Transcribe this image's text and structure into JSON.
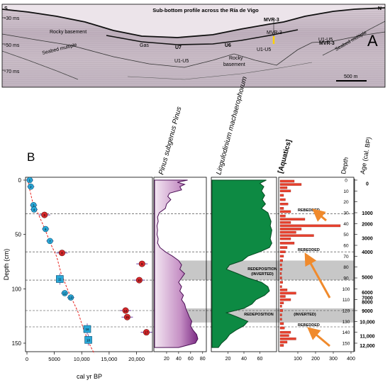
{
  "panel_a": {
    "letter": "A",
    "title": "Sub-bottom profile across the Ría de Vigo",
    "corner_left": "S",
    "corner_right": "N",
    "depth_ticks": [
      "-30 ms",
      "-50 ms",
      "-70 ms"
    ],
    "labels": {
      "rocky_basement_left": "Rocky basement",
      "seabed_multiple_left": "Seabed multiple",
      "gas": "Gas",
      "u7": "U7",
      "u1u5_a": "U1-U5",
      "u6": "U6",
      "rocky_basement_mid_1": "Rocky",
      "rocky_basement_mid_2": "basement",
      "mvr3_top": "MVR-3",
      "mvr3_mid": "MVR-3",
      "u1u5_b": "U1-U5",
      "u1u5_c": "U1-U5",
      "mvr3_right": "MVR-3",
      "seabed_multiple_right": "Seabed multiple"
    },
    "scale_bar": "500 m",
    "colors": {
      "core_marker": "#ffd200",
      "seafloor": "#000000"
    }
  },
  "panel_b": {
    "letter": "B",
    "colors": {
      "accent": "#e8231f",
      "pinus_fill": "#7b2a84",
      "pinus_light": "#e9cfe8",
      "lingulo_fill": "#0d8a43",
      "aquatics_bar": "#e8412e",
      "redeposition": "#bdbdbd",
      "arrow": "#f08a2c"
    },
    "age_depth": {
      "ylabel": "Depth (cm)",
      "xlabel": "cal yr BP",
      "xticks": [
        "0",
        "5000",
        "10,000",
        "15,000",
        "20,000"
      ],
      "yticks": [
        "0",
        "50",
        "100",
        "150"
      ],
      "points": [
        {
          "id": "1",
          "kind": "calibrated",
          "age": 500,
          "depth": 0
        },
        {
          "id": "2",
          "kind": "calibrated",
          "age": 700,
          "depth": 6
        },
        {
          "id": "3",
          "kind": "calibrated",
          "age": 1200,
          "depth": 23
        },
        {
          "id": "4",
          "kind": "calibrated",
          "age": 1300,
          "depth": 27
        },
        {
          "id": "5",
          "kind": "rejected",
          "age": 3200,
          "depth": 32
        },
        {
          "id": "6",
          "kind": "calibrated",
          "age": 3400,
          "depth": 45
        },
        {
          "id": "7",
          "kind": "calibrated",
          "age": 4200,
          "depth": 56
        },
        {
          "id": "8",
          "kind": "rejected",
          "age": 6400,
          "depth": 67
        },
        {
          "id": "9",
          "kind": "rejected",
          "age": 21000,
          "depth": 77
        },
        {
          "id": "10",
          "kind": "rejected",
          "age": 20500,
          "depth": 92
        },
        {
          "id": "11",
          "kind": "square",
          "age": 6000,
          "depth": 91
        },
        {
          "id": "12",
          "kind": "calibrated",
          "age": 6900,
          "depth": 104
        },
        {
          "id": "13",
          "kind": "calibrated",
          "age": 8000,
          "depth": 108
        },
        {
          "id": "14",
          "kind": "rejected",
          "age": 18000,
          "depth": 120
        },
        {
          "id": "15",
          "kind": "rejected",
          "age": 18300,
          "depth": 126
        },
        {
          "id": "16",
          "kind": "square",
          "age": 11000,
          "depth": 137
        },
        {
          "id": "17",
          "kind": "rejected",
          "age": 21800,
          "depth": 140
        },
        {
          "id": "18",
          "kind": "square",
          "age": 11200,
          "depth": 147
        }
      ]
    },
    "pinus": {
      "title": "Pinus subgenus Pinus",
      "xticks": [
        "20",
        "40",
        "60",
        "80"
      ],
      "values": [
        {
          "depth": 0,
          "value": 55
        },
        {
          "depth": 2,
          "value": 38
        },
        {
          "depth": 4,
          "value": 50
        },
        {
          "depth": 6,
          "value": 42
        },
        {
          "depth": 9,
          "value": 45
        },
        {
          "depth": 12,
          "value": 25
        },
        {
          "depth": 15,
          "value": 22
        },
        {
          "depth": 18,
          "value": 27
        },
        {
          "depth": 22,
          "value": 20
        },
        {
          "depth": 26,
          "value": 18
        },
        {
          "depth": 30,
          "value": 8
        },
        {
          "depth": 34,
          "value": 5
        },
        {
          "depth": 38,
          "value": 6
        },
        {
          "depth": 42,
          "value": 4
        },
        {
          "depth": 46,
          "value": 5
        },
        {
          "depth": 50,
          "value": 4
        },
        {
          "depth": 54,
          "value": 6
        },
        {
          "depth": 58,
          "value": 5
        },
        {
          "depth": 62,
          "value": 9
        },
        {
          "depth": 66,
          "value": 18
        },
        {
          "depth": 70,
          "value": 30
        },
        {
          "depth": 74,
          "value": 40
        },
        {
          "depth": 78,
          "value": 45
        },
        {
          "depth": 82,
          "value": 42
        },
        {
          "depth": 86,
          "value": 50
        },
        {
          "depth": 90,
          "value": 45
        },
        {
          "depth": 94,
          "value": 40
        },
        {
          "depth": 98,
          "value": 45
        },
        {
          "depth": 102,
          "value": 42
        },
        {
          "depth": 106,
          "value": 48
        },
        {
          "depth": 110,
          "value": 45
        },
        {
          "depth": 114,
          "value": 50
        },
        {
          "depth": 118,
          "value": 52
        },
        {
          "depth": 122,
          "value": 55
        },
        {
          "depth": 126,
          "value": 58
        },
        {
          "depth": 130,
          "value": 62
        },
        {
          "depth": 134,
          "value": 60
        },
        {
          "depth": 138,
          "value": 64
        },
        {
          "depth": 142,
          "value": 70
        },
        {
          "depth": 146,
          "value": 72
        },
        {
          "depth": 150,
          "value": 68
        },
        {
          "depth": 154,
          "value": 40
        }
      ]
    },
    "lingulodinium": {
      "title": "Lingulodinium machaerophorum",
      "xticks": [
        "20",
        "40",
        "60"
      ],
      "values": [
        {
          "depth": 0,
          "value": 68
        },
        {
          "depth": 3,
          "value": 60
        },
        {
          "depth": 6,
          "value": 65
        },
        {
          "depth": 10,
          "value": 62
        },
        {
          "depth": 14,
          "value": 66
        },
        {
          "depth": 18,
          "value": 63
        },
        {
          "depth": 22,
          "value": 67
        },
        {
          "depth": 26,
          "value": 62
        },
        {
          "depth": 30,
          "value": 70
        },
        {
          "depth": 34,
          "value": 72
        },
        {
          "depth": 38,
          "value": 74
        },
        {
          "depth": 42,
          "value": 73
        },
        {
          "depth": 46,
          "value": 75
        },
        {
          "depth": 50,
          "value": 74
        },
        {
          "depth": 54,
          "value": 73
        },
        {
          "depth": 58,
          "value": 75
        },
        {
          "depth": 62,
          "value": 72
        },
        {
          "depth": 66,
          "value": 60
        },
        {
          "depth": 70,
          "value": 45
        },
        {
          "depth": 74,
          "value": 38
        },
        {
          "depth": 78,
          "value": 22
        },
        {
          "depth": 82,
          "value": 18
        },
        {
          "depth": 86,
          "value": 32
        },
        {
          "depth": 90,
          "value": 45
        },
        {
          "depth": 94,
          "value": 62
        },
        {
          "depth": 98,
          "value": 70
        },
        {
          "depth": 102,
          "value": 72
        },
        {
          "depth": 106,
          "value": 66
        },
        {
          "depth": 110,
          "value": 55
        },
        {
          "depth": 114,
          "value": 50
        },
        {
          "depth": 118,
          "value": 40
        },
        {
          "depth": 122,
          "value": 18
        },
        {
          "depth": 126,
          "value": 32
        },
        {
          "depth": 130,
          "value": 45
        },
        {
          "depth": 134,
          "value": 40
        },
        {
          "depth": 138,
          "value": 30
        },
        {
          "depth": 142,
          "value": 22
        },
        {
          "depth": 146,
          "value": 18
        },
        {
          "depth": 150,
          "value": 12
        },
        {
          "depth": 154,
          "value": 8
        }
      ]
    },
    "aquatics": {
      "title": "[Aquatics]",
      "xticks": [
        "100",
        "200",
        "300",
        "400"
      ],
      "values": [
        {
          "depth": 1,
          "value": 80
        },
        {
          "depth": 4,
          "value": 120
        },
        {
          "depth": 7,
          "value": 40
        },
        {
          "depth": 10,
          "value": 60
        },
        {
          "depth": 14,
          "value": 20
        },
        {
          "depth": 18,
          "value": 30
        },
        {
          "depth": 22,
          "value": 45
        },
        {
          "depth": 26,
          "value": 20
        },
        {
          "depth": 29,
          "value": 60
        },
        {
          "depth": 33,
          "value": 30
        },
        {
          "depth": 36,
          "value": 140
        },
        {
          "depth": 39,
          "value": 60
        },
        {
          "depth": 42,
          "value": 340
        },
        {
          "depth": 45,
          "value": 120
        },
        {
          "depth": 48,
          "value": 90
        },
        {
          "depth": 51,
          "value": 190
        },
        {
          "depth": 54,
          "value": 60
        },
        {
          "depth": 58,
          "value": 80
        },
        {
          "depth": 62,
          "value": 40
        },
        {
          "depth": 66,
          "value": 30
        },
        {
          "depth": 70,
          "value": 20
        },
        {
          "depth": 74,
          "value": 15
        },
        {
          "depth": 78,
          "value": 10
        },
        {
          "depth": 82,
          "value": 12
        },
        {
          "depth": 86,
          "value": 8
        },
        {
          "depth": 90,
          "value": 10
        },
        {
          "depth": 94,
          "value": 15
        },
        {
          "depth": 98,
          "value": 10
        },
        {
          "depth": 101,
          "value": 40
        },
        {
          "depth": 104,
          "value": 90
        },
        {
          "depth": 107,
          "value": 30
        },
        {
          "depth": 110,
          "value": 60
        },
        {
          "depth": 113,
          "value": 20
        },
        {
          "depth": 116,
          "value": 10
        },
        {
          "depth": 120,
          "value": 15
        },
        {
          "depth": 124,
          "value": 10
        },
        {
          "depth": 128,
          "value": 10
        },
        {
          "depth": 132,
          "value": 20
        },
        {
          "depth": 136,
          "value": 25
        },
        {
          "depth": 140,
          "value": 60
        },
        {
          "depth": 143,
          "value": 50
        },
        {
          "depth": 146,
          "value": 90
        },
        {
          "depth": 149,
          "value": 40
        },
        {
          "depth": 152,
          "value": 20
        }
      ]
    },
    "depth_axis": {
      "title": "Depth",
      "ticks": [
        "0",
        "10",
        "20",
        "30",
        "40",
        "50",
        "60",
        "70",
        "80",
        "90",
        "100",
        "110",
        "120",
        "130",
        "140",
        "150"
      ]
    },
    "age_axis": {
      "title": "Age (cal. BP)",
      "labels": [
        {
          "depth": 3,
          "label": "0"
        },
        {
          "depth": 30,
          "label": "1000"
        },
        {
          "depth": 40,
          "label": "2000"
        },
        {
          "depth": 53,
          "label": "3000"
        },
        {
          "depth": 66,
          "label": "4000"
        },
        {
          "depth": 89,
          "label": "5000"
        },
        {
          "depth": 103,
          "label": "6000"
        },
        {
          "depth": 108,
          "label": "7000"
        },
        {
          "depth": 112,
          "label": "8000"
        },
        {
          "depth": 120,
          "label": "9000"
        },
        {
          "depth": 130,
          "label": "10,000"
        },
        {
          "depth": 143,
          "label": "11,000"
        },
        {
          "depth": 152,
          "label": "12,000"
        }
      ]
    },
    "dashed_depths": [
      31,
      66,
      92,
      120,
      135
    ],
    "redeposition_bands": [
      {
        "from": 74,
        "to": 92
      },
      {
        "from": 118,
        "to": 131
      }
    ],
    "annotations": {
      "rebedded_1": "REBEDDED",
      "rebedded_2": "REBEDDED",
      "rebedded_3": "REBEDDED",
      "redep_inverted_1": "REDEPOSITION",
      "redep_inverted_2": "(INVERTED)",
      "redep": "REDEPOSITION",
      "inverted": "(INVERTED)"
    }
  }
}
